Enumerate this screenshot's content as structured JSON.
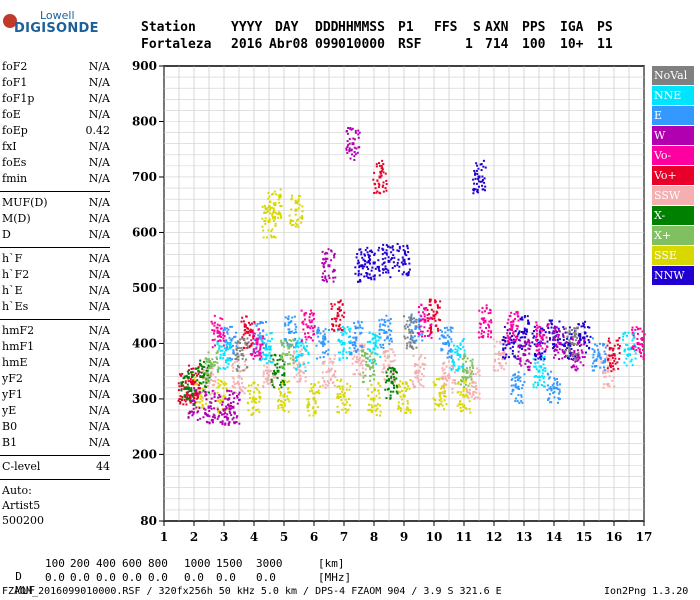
{
  "logo": {
    "line1": "Lowell",
    "line2": "DIGISONDE"
  },
  "header": {
    "labels": [
      "Station",
      "YYYY",
      "DAY",
      "DDD",
      "HHMMSS",
      "P1",
      "FFS",
      "S",
      "AXN",
      "PPS",
      "IGA",
      "PS"
    ],
    "values": [
      "Fortaleza",
      "2016",
      "Abr08",
      "099",
      "010000",
      "RSF",
      "1",
      "714",
      "100",
      "10+",
      "11"
    ]
  },
  "params": {
    "group1": [
      {
        "name": "foF2",
        "value": "N/A"
      },
      {
        "name": "foF1",
        "value": "N/A"
      },
      {
        "name": "foF1p",
        "value": "N/A"
      },
      {
        "name": "foE",
        "value": "N/A"
      },
      {
        "name": "foEp",
        "value": "0.42"
      },
      {
        "name": "fxI",
        "value": "N/A"
      },
      {
        "name": "foEs",
        "value": "N/A"
      },
      {
        "name": "fmin",
        "value": "N/A"
      }
    ],
    "group2": [
      {
        "name": "MUF(D)",
        "value": "N/A"
      },
      {
        "name": "M(D)",
        "value": "N/A"
      },
      {
        "name": "D",
        "value": "N/A"
      }
    ],
    "group3": [
      {
        "name": "h`F",
        "value": "N/A"
      },
      {
        "name": "h`F2",
        "value": "N/A"
      },
      {
        "name": "h`E",
        "value": "N/A"
      },
      {
        "name": "h`Es",
        "value": "N/A"
      }
    ],
    "group4": [
      {
        "name": "hmF2",
        "value": "N/A"
      },
      {
        "name": "hmF1",
        "value": "N/A"
      },
      {
        "name": "hmE",
        "value": "N/A"
      },
      {
        "name": "yF2",
        "value": "N/A"
      },
      {
        "name": "yF1",
        "value": "N/A"
      },
      {
        "name": "yE",
        "value": "N/A"
      },
      {
        "name": "B0",
        "value": "N/A"
      },
      {
        "name": "B1",
        "value": "N/A"
      }
    ],
    "clevel": {
      "name": "C-level",
      "value": "44"
    },
    "auto": {
      "line1": "Auto:",
      "line2": "Artist5",
      "line3": "500200"
    }
  },
  "legend": [
    {
      "label": "NoVal",
      "color": "#808080"
    },
    {
      "label": "NNE",
      "color": "#00e5ff"
    },
    {
      "label": "E",
      "color": "#3399ff"
    },
    {
      "label": "W",
      "color": "#b000b0"
    },
    {
      "label": "Vo-",
      "color": "#ff00a0"
    },
    {
      "label": "Vo+",
      "color": "#e8002a"
    },
    {
      "label": "SSW",
      "color": "#f4b0b0"
    },
    {
      "label": "X-",
      "color": "#008000"
    },
    {
      "label": "X+",
      "color": "#80c060"
    },
    {
      "label": "SSE",
      "color": "#d8d800"
    },
    {
      "label": "NNW",
      "color": "#2000d0"
    }
  ],
  "footer": {
    "d_label": "D",
    "d_values": [
      "100",
      "200",
      "400",
      "600",
      "800",
      "1000",
      "1500",
      "3000"
    ],
    "d_unit": "[km]",
    "muf_label": "MUF",
    "muf_values": [
      "0.0",
      "0.0",
      "0.0",
      "0.0",
      "0.0",
      "0.0",
      "0.0",
      "0.0"
    ],
    "muf_unit": "[MHz]",
    "file_line": "FZAOM_2016099010000.RSF / 320fx256h 50 kHz 5.0 km / DPS-4 FZAOM 904 / 3.9 S 321.6 E",
    "version": "Ion2Png 1.3.20"
  },
  "chart_data": {
    "type": "scatter",
    "xlim": [
      1,
      17
    ],
    "ylim": [
      80,
      900
    ],
    "x_ticks": [
      1,
      2,
      3,
      4,
      5,
      6,
      7,
      8,
      9,
      10,
      11,
      12,
      13,
      14,
      15,
      16,
      17
    ],
    "y_ticks": [
      80,
      200,
      300,
      400,
      500,
      600,
      700,
      800,
      900
    ],
    "grid": true,
    "series": [
      {
        "name": "SSE",
        "points": [
          [
            2.2,
            310
          ],
          [
            3.0,
            305
          ],
          [
            4.0,
            300
          ],
          [
            5.0,
            305
          ],
          [
            6.0,
            300
          ],
          [
            7.0,
            305
          ],
          [
            8.0,
            300
          ],
          [
            9.0,
            305
          ],
          [
            10.2,
            310
          ],
          [
            11.0,
            305
          ],
          [
            4.5,
            620
          ],
          [
            4.7,
            650
          ],
          [
            5.4,
            640
          ]
        ]
      },
      {
        "name": "SSW",
        "points": [
          [
            2.5,
            330
          ],
          [
            3.5,
            340
          ],
          [
            4.5,
            350
          ],
          [
            5.5,
            360
          ],
          [
            6.5,
            350
          ],
          [
            7.5,
            370
          ],
          [
            8.5,
            360
          ],
          [
            9.5,
            350
          ],
          [
            10.5,
            340
          ],
          [
            11.3,
            330
          ],
          [
            12.2,
            380
          ],
          [
            15.8,
            350
          ]
        ]
      },
      {
        "name": "E",
        "points": [
          [
            3.2,
            400
          ],
          [
            4.2,
            410
          ],
          [
            5.2,
            420
          ],
          [
            6.3,
            400
          ],
          [
            7.4,
            410
          ],
          [
            8.4,
            420
          ],
          [
            9.4,
            430
          ],
          [
            10.4,
            400
          ],
          [
            12.8,
            320
          ],
          [
            14.0,
            320
          ],
          [
            15.5,
            380
          ]
        ]
      },
      {
        "name": "NNE",
        "points": [
          [
            3.0,
            380
          ],
          [
            4.4,
            390
          ],
          [
            5.6,
            380
          ],
          [
            7.0,
            400
          ],
          [
            8.0,
            390
          ],
          [
            10.8,
            380
          ],
          [
            13.5,
            350
          ],
          [
            16.5,
            390
          ]
        ]
      },
      {
        "name": "NNW",
        "points": [
          [
            7.6,
            540
          ],
          [
            8.0,
            545
          ],
          [
            8.5,
            548
          ],
          [
            9.0,
            550
          ],
          [
            12.5,
            400
          ],
          [
            13.0,
            420
          ],
          [
            13.5,
            400
          ],
          [
            14.0,
            420
          ],
          [
            14.5,
            400
          ],
          [
            15.0,
            410
          ],
          [
            11.5,
            700
          ]
        ]
      },
      {
        "name": "W",
        "points": [
          [
            2.0,
            290
          ],
          [
            2.5,
            285
          ],
          [
            3.0,
            280
          ],
          [
            3.3,
            285
          ],
          [
            6.5,
            540
          ],
          [
            7.3,
            760
          ],
          [
            13.0,
            380
          ],
          [
            14.2,
            400
          ],
          [
            14.8,
            380
          ]
        ]
      },
      {
        "name": "Vo-",
        "points": [
          [
            2.8,
            420
          ],
          [
            4.1,
            400
          ],
          [
            5.8,
            430
          ],
          [
            9.7,
            440
          ],
          [
            11.7,
            440
          ],
          [
            12.6,
            430
          ],
          [
            13.6,
            410
          ],
          [
            16.8,
            400
          ]
        ]
      },
      {
        "name": "Vo+",
        "points": [
          [
            1.7,
            320
          ],
          [
            2.0,
            330
          ],
          [
            3.8,
            420
          ],
          [
            6.8,
            450
          ],
          [
            8.2,
            700
          ],
          [
            10.0,
            450
          ],
          [
            16.0,
            380
          ]
        ]
      },
      {
        "name": "X-",
        "points": [
          [
            1.8,
            320
          ],
          [
            2.3,
            340
          ],
          [
            4.8,
            350
          ],
          [
            8.6,
            330
          ]
        ]
      },
      {
        "name": "X+",
        "points": [
          [
            2.6,
            360
          ],
          [
            5.1,
            380
          ],
          [
            7.8,
            360
          ],
          [
            11.1,
            350
          ]
        ]
      },
      {
        "name": "NoVal",
        "points": [
          [
            3.6,
            380
          ],
          [
            9.2,
            420
          ],
          [
            14.6,
            400
          ]
        ]
      }
    ]
  }
}
